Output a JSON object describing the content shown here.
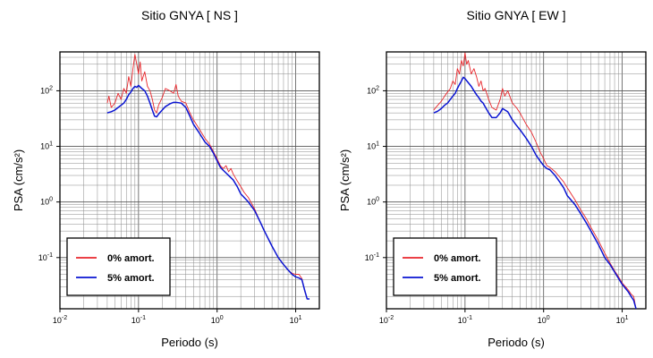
{
  "chart_data": [
    {
      "type": "line",
      "title": "Sitio GNYA [ NS ]",
      "xlabel": "Periodo (s)",
      "ylabel": "PSA (cm/s²)",
      "xscale": "log",
      "yscale": "log",
      "xlim": [
        0.01,
        20
      ],
      "ylim": [
        0.012,
        500
      ],
      "grid": true,
      "legend": "bottom-left",
      "x_ticks": [
        {
          "base": "10",
          "exp": "-2"
        },
        {
          "base": "10",
          "exp": "-1"
        },
        {
          "base": "10",
          "exp": "0"
        },
        {
          "base": "10",
          "exp": "1"
        }
      ],
      "y_ticks": [
        {
          "base": "10",
          "exp": "-1"
        },
        {
          "base": "10",
          "exp": "0"
        },
        {
          "base": "10",
          "exp": "1"
        },
        {
          "base": "10",
          "exp": "2"
        }
      ],
      "series": [
        {
          "name": "0% amort.",
          "color": "#e8262b",
          "points": [
            [
              0.04,
              60
            ],
            [
              0.042,
              80
            ],
            [
              0.045,
              50
            ],
            [
              0.05,
              60
            ],
            [
              0.055,
              90
            ],
            [
              0.06,
              70
            ],
            [
              0.065,
              110
            ],
            [
              0.07,
              90
            ],
            [
              0.075,
              180
            ],
            [
              0.08,
              120
            ],
            [
              0.085,
              250
            ],
            [
              0.09,
              450
            ],
            [
              0.095,
              300
            ],
            [
              0.1,
              200
            ],
            [
              0.105,
              330
            ],
            [
              0.11,
              150
            ],
            [
              0.12,
              220
            ],
            [
              0.13,
              120
            ],
            [
              0.14,
              100
            ],
            [
              0.15,
              70
            ],
            [
              0.16,
              45
            ],
            [
              0.17,
              40
            ],
            [
              0.18,
              55
            ],
            [
              0.2,
              75
            ],
            [
              0.22,
              110
            ],
            [
              0.25,
              100
            ],
            [
              0.28,
              90
            ],
            [
              0.3,
              130
            ],
            [
              0.32,
              80
            ],
            [
              0.35,
              65
            ],
            [
              0.4,
              60
            ],
            [
              0.45,
              40
            ],
            [
              0.5,
              30
            ],
            [
              0.6,
              20
            ],
            [
              0.7,
              14
            ],
            [
              0.8,
              11
            ],
            [
              0.9,
              8
            ],
            [
              1.0,
              6
            ],
            [
              1.1,
              4.5
            ],
            [
              1.2,
              4
            ],
            [
              1.3,
              4.5
            ],
            [
              1.4,
              3.5
            ],
            [
              1.5,
              4
            ],
            [
              1.6,
              3.2
            ],
            [
              1.8,
              2.4
            ],
            [
              2.0,
              1.9
            ],
            [
              2.2,
              1.5
            ],
            [
              2.5,
              1.2
            ],
            [
              3.0,
              0.75
            ],
            [
              3.5,
              0.45
            ],
            [
              4.0,
              0.3
            ],
            [
              5.0,
              0.16
            ],
            [
              6.0,
              0.1
            ],
            [
              7.0,
              0.075
            ],
            [
              8.0,
              0.06
            ],
            [
              9.0,
              0.052
            ],
            [
              10.0,
              0.05
            ],
            [
              11.0,
              0.05
            ],
            [
              12.0,
              0.042
            ],
            [
              13.0,
              0.025
            ],
            [
              14.0,
              0.018
            ],
            [
              15.0,
              0.018
            ]
          ]
        },
        {
          "name": "5% amort.",
          "color": "#0a14d2",
          "points": [
            [
              0.04,
              40
            ],
            [
              0.045,
              42
            ],
            [
              0.05,
              45
            ],
            [
              0.055,
              50
            ],
            [
              0.06,
              55
            ],
            [
              0.065,
              60
            ],
            [
              0.07,
              70
            ],
            [
              0.075,
              85
            ],
            [
              0.08,
              95
            ],
            [
              0.085,
              110
            ],
            [
              0.09,
              120
            ],
            [
              0.095,
              115
            ],
            [
              0.1,
              125
            ],
            [
              0.11,
              110
            ],
            [
              0.12,
              100
            ],
            [
              0.13,
              80
            ],
            [
              0.14,
              60
            ],
            [
              0.15,
              45
            ],
            [
              0.16,
              35
            ],
            [
              0.17,
              34
            ],
            [
              0.18,
              38
            ],
            [
              0.2,
              45
            ],
            [
              0.22,
              52
            ],
            [
              0.25,
              58
            ],
            [
              0.28,
              62
            ],
            [
              0.3,
              62
            ],
            [
              0.35,
              60
            ],
            [
              0.4,
              50
            ],
            [
              0.45,
              35
            ],
            [
              0.5,
              25
            ],
            [
              0.6,
              17
            ],
            [
              0.7,
              12
            ],
            [
              0.8,
              10
            ],
            [
              0.9,
              7.5
            ],
            [
              1.0,
              5.5
            ],
            [
              1.1,
              4.2
            ],
            [
              1.2,
              3.7
            ],
            [
              1.4,
              3.0
            ],
            [
              1.6,
              2.5
            ],
            [
              1.8,
              1.9
            ],
            [
              2.0,
              1.4
            ],
            [
              2.5,
              1.0
            ],
            [
              3.0,
              0.7
            ],
            [
              3.5,
              0.45
            ],
            [
              4.0,
              0.3
            ],
            [
              5.0,
              0.16
            ],
            [
              6.0,
              0.1
            ],
            [
              7.0,
              0.075
            ],
            [
              8.0,
              0.06
            ],
            [
              9.0,
              0.05
            ],
            [
              10.0,
              0.045
            ],
            [
              11.0,
              0.043
            ],
            [
              12.0,
              0.04
            ],
            [
              13.0,
              0.026
            ],
            [
              14.0,
              0.018
            ],
            [
              15.0,
              0.018
            ]
          ]
        }
      ]
    },
    {
      "type": "line",
      "title": "Sitio GNYA [ EW ]",
      "xlabel": "Periodo (s)",
      "ylabel": "PSA (cm/s²)",
      "xscale": "log",
      "yscale": "log",
      "xlim": [
        0.01,
        20
      ],
      "ylim": [
        0.012,
        500
      ],
      "grid": true,
      "legend": "bottom-left",
      "x_ticks": [
        {
          "base": "10",
          "exp": "-2"
        },
        {
          "base": "10",
          "exp": "-1"
        },
        {
          "base": "10",
          "exp": "0"
        },
        {
          "base": "10",
          "exp": "1"
        }
      ],
      "y_ticks": [
        {
          "base": "10",
          "exp": "-1"
        },
        {
          "base": "10",
          "exp": "0"
        },
        {
          "base": "10",
          "exp": "1"
        },
        {
          "base": "10",
          "exp": "2"
        }
      ],
      "series": [
        {
          "name": "0% amort.",
          "color": "#e8262b",
          "points": [
            [
              0.04,
              45
            ],
            [
              0.045,
              55
            ],
            [
              0.05,
              65
            ],
            [
              0.055,
              80
            ],
            [
              0.06,
              95
            ],
            [
              0.065,
              110
            ],
            [
              0.07,
              150
            ],
            [
              0.075,
              130
            ],
            [
              0.08,
              250
            ],
            [
              0.085,
              200
            ],
            [
              0.09,
              350
            ],
            [
              0.095,
              280
            ],
            [
              0.1,
              480
            ],
            [
              0.105,
              300
            ],
            [
              0.11,
              350
            ],
            [
              0.12,
              200
            ],
            [
              0.13,
              250
            ],
            [
              0.14,
              180
            ],
            [
              0.15,
              120
            ],
            [
              0.16,
              150
            ],
            [
              0.17,
              100
            ],
            [
              0.18,
              110
            ],
            [
              0.2,
              70
            ],
            [
              0.22,
              50
            ],
            [
              0.25,
              45
            ],
            [
              0.28,
              70
            ],
            [
              0.3,
              110
            ],
            [
              0.32,
              80
            ],
            [
              0.35,
              100
            ],
            [
              0.4,
              60
            ],
            [
              0.45,
              50
            ],
            [
              0.5,
              40
            ],
            [
              0.6,
              25
            ],
            [
              0.7,
              18
            ],
            [
              0.8,
              12
            ],
            [
              0.9,
              8
            ],
            [
              1.0,
              6
            ],
            [
              1.1,
              4.5
            ],
            [
              1.2,
              4.2
            ],
            [
              1.4,
              3.5
            ],
            [
              1.6,
              2.8
            ],
            [
              1.8,
              2.3
            ],
            [
              2.0,
              1.8
            ],
            [
              2.5,
              1.1
            ],
            [
              3.0,
              0.7
            ],
            [
              3.5,
              0.5
            ],
            [
              4.0,
              0.35
            ],
            [
              5.0,
              0.2
            ],
            [
              6.0,
              0.12
            ],
            [
              7.0,
              0.08
            ],
            [
              8.0,
              0.058
            ],
            [
              9.0,
              0.045
            ],
            [
              10.0,
              0.035
            ],
            [
              11.0,
              0.03
            ],
            [
              12.0,
              0.026
            ],
            [
              13.0,
              0.022
            ],
            [
              14.0,
              0.02
            ],
            [
              15.0,
              0.012
            ]
          ]
        },
        {
          "name": "5% amort.",
          "color": "#0a14d2",
          "points": [
            [
              0.04,
              40
            ],
            [
              0.045,
              43
            ],
            [
              0.05,
              48
            ],
            [
              0.055,
              55
            ],
            [
              0.06,
              60
            ],
            [
              0.065,
              70
            ],
            [
              0.07,
              80
            ],
            [
              0.075,
              90
            ],
            [
              0.08,
              110
            ],
            [
              0.085,
              130
            ],
            [
              0.09,
              150
            ],
            [
              0.095,
              175
            ],
            [
              0.1,
              165
            ],
            [
              0.11,
              140
            ],
            [
              0.12,
              120
            ],
            [
              0.13,
              100
            ],
            [
              0.14,
              85
            ],
            [
              0.15,
              75
            ],
            [
              0.16,
              65
            ],
            [
              0.17,
              60
            ],
            [
              0.18,
              52
            ],
            [
              0.2,
              40
            ],
            [
              0.22,
              33
            ],
            [
              0.25,
              33
            ],
            [
              0.28,
              40
            ],
            [
              0.3,
              48
            ],
            [
              0.35,
              42
            ],
            [
              0.4,
              30
            ],
            [
              0.45,
              24
            ],
            [
              0.5,
              20
            ],
            [
              0.6,
              14
            ],
            [
              0.7,
              10
            ],
            [
              0.8,
              7
            ],
            [
              0.9,
              5.5
            ],
            [
              1.0,
              4.5
            ],
            [
              1.1,
              4
            ],
            [
              1.2,
              3.8
            ],
            [
              1.4,
              3
            ],
            [
              1.6,
              2.3
            ],
            [
              1.8,
              1.8
            ],
            [
              2.0,
              1.3
            ],
            [
              2.5,
              0.9
            ],
            [
              3.0,
              0.6
            ],
            [
              3.5,
              0.42
            ],
            [
              4.0,
              0.3
            ],
            [
              5.0,
              0.17
            ],
            [
              6.0,
              0.1
            ],
            [
              7.0,
              0.075
            ],
            [
              8.0,
              0.055
            ],
            [
              9.0,
              0.042
            ],
            [
              10.0,
              0.033
            ],
            [
              11.0,
              0.028
            ],
            [
              12.0,
              0.024
            ],
            [
              13.0,
              0.02
            ],
            [
              14.0,
              0.017
            ],
            [
              15.0,
              0.012
            ]
          ]
        }
      ]
    }
  ]
}
